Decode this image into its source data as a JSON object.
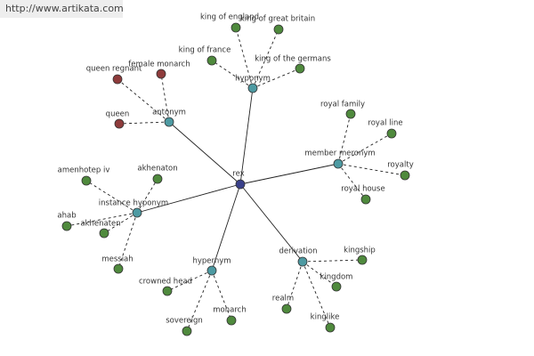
{
  "header": {
    "url": "http://www.artikata.com"
  },
  "root": {
    "label": "rex",
    "children": [
      {
        "label": "hyponym",
        "children": [
          {
            "label": "king of england"
          },
          {
            "label": "king of great britain"
          },
          {
            "label": "king of france"
          },
          {
            "label": "king of the germans"
          }
        ]
      },
      {
        "label": "antonym",
        "children": [
          {
            "label": "female monarch"
          },
          {
            "label": "queen regnant"
          },
          {
            "label": "queen"
          }
        ]
      },
      {
        "label": "member meronym",
        "children": [
          {
            "label": "royal family"
          },
          {
            "label": "royal line"
          },
          {
            "label": "royalty"
          },
          {
            "label": "royal house"
          }
        ]
      },
      {
        "label": "derivation",
        "children": [
          {
            "label": "kingship"
          },
          {
            "label": "kingdom"
          },
          {
            "label": "realm"
          },
          {
            "label": "kinglike"
          }
        ]
      },
      {
        "label": "hypernym",
        "children": [
          {
            "label": "crowned head"
          },
          {
            "label": "sovereign"
          },
          {
            "label": "monarch"
          }
        ]
      },
      {
        "label": "instance hyponym",
        "children": [
          {
            "label": "amenhotep iv"
          },
          {
            "label": "akhenaton"
          },
          {
            "label": "ahab"
          },
          {
            "label": "akhenaten"
          },
          {
            "label": "messiah"
          }
        ]
      }
    ]
  }
}
